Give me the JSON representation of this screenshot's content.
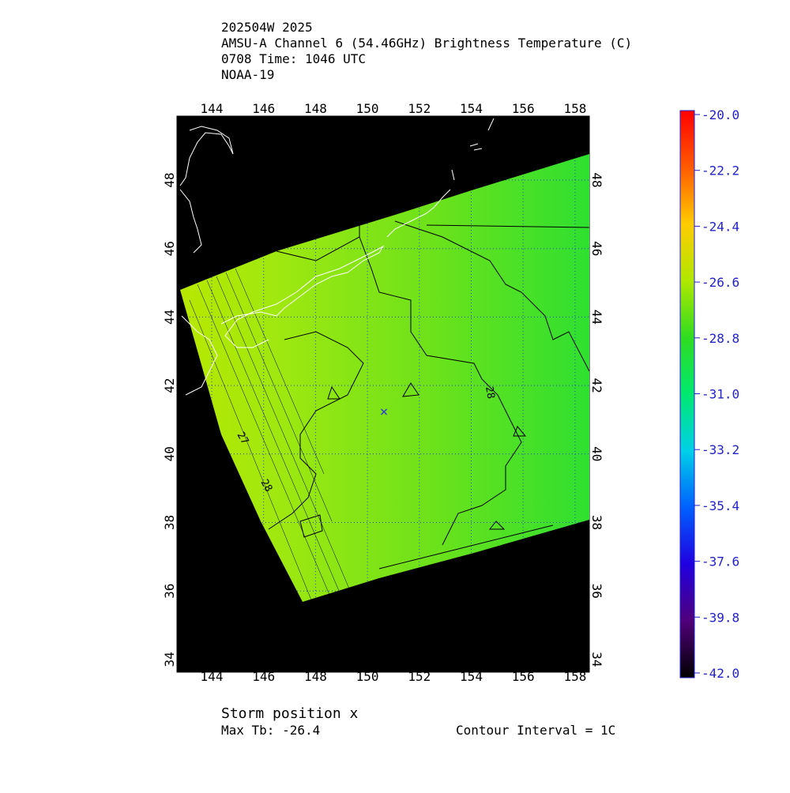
{
  "header": {
    "lines": [
      "202504W 2025",
      "AMSU-A Channel 6 (54.46GHz) Brightness Temperature (C)",
      "0708 Time: 1046 UTC",
      "NOAA-19"
    ]
  },
  "map": {
    "lon_labels": [
      "144",
      "146",
      "148",
      "150",
      "152",
      "154",
      "156",
      "158"
    ],
    "lat_labels": [
      "48",
      "46",
      "44",
      "42",
      "40",
      "38",
      "36",
      "34"
    ],
    "contour_labels": [
      "28",
      "27",
      "28"
    ]
  },
  "colorbar": {
    "labels": [
      "-20.0",
      "-22.2",
      "-24.4",
      "-26.6",
      "-28.8",
      "-31.0",
      "-33.2",
      "-35.4",
      "-37.6",
      "-39.8",
      "-42.0"
    ]
  },
  "footer": {
    "storm": "Storm position x",
    "max_tb": "Max Tb: -26.4",
    "contour_interval": "Contour Interval = 1C"
  }
}
